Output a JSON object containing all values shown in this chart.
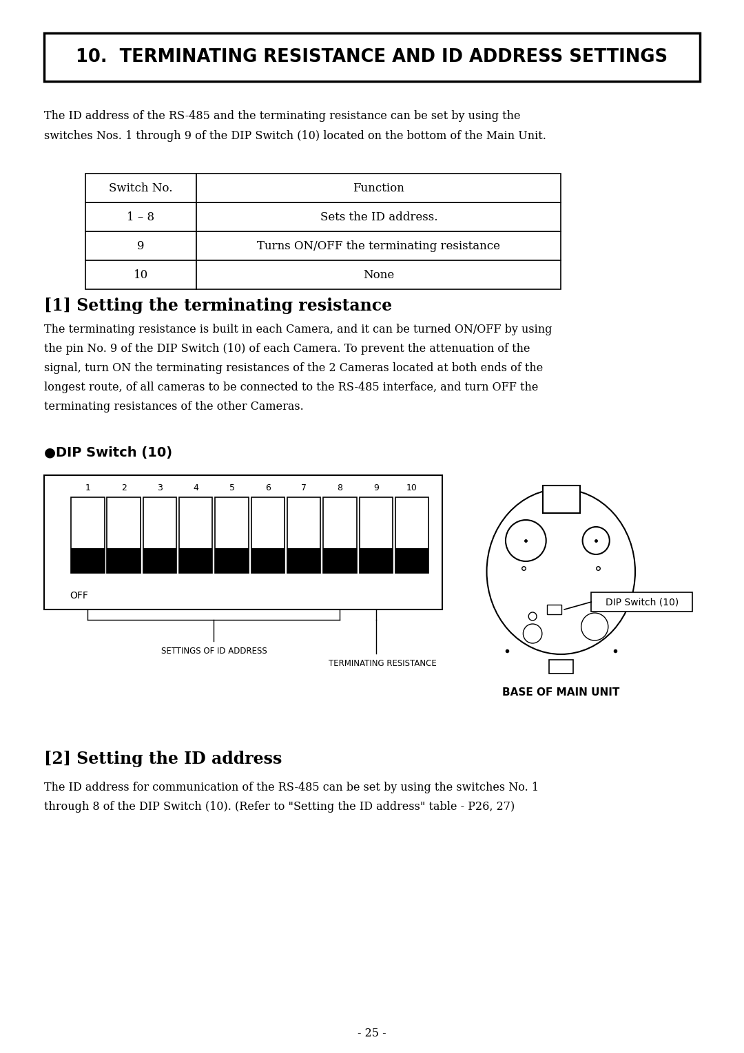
{
  "title": "10.  TERMINATING RESISTANCE AND ID ADDRESS SETTINGS",
  "intro_text": "The ID address of the RS-485 and the terminating resistance can be set by using the\nswitches Nos. 1 through 9 of the DIP Switch (10) located on the bottom of the Main Unit.",
  "table_headers": [
    "Switch No.",
    "Function"
  ],
  "table_rows": [
    [
      "1 – 8",
      "Sets the ID address."
    ],
    [
      "9",
      "Turns ON/OFF the terminating resistance"
    ],
    [
      "10",
      "None"
    ]
  ],
  "section1_title": "[1] Setting the terminating resistance",
  "section1_text": "The terminating resistance is built in each Camera, and it can be turned ON/OFF by using\nthe pin No. 9 of the DIP Switch (10) of each Camera. To prevent the attenuation of the\nsignal, turn ON the terminating resistances of the 2 Cameras located at both ends of the\nlongest route, of all cameras to be connected to the RS-485 interface, and turn OFF the\nterminating resistances of the other Cameras.",
  "dip_switch_title": "●DIP Switch (10)",
  "switch_numbers": [
    "1",
    "2",
    "3",
    "4",
    "5",
    "6",
    "7",
    "8",
    "9",
    "10"
  ],
  "off_label": "OFF",
  "settings_id_label": "SETTINGS OF ID ADDRESS",
  "terminating_label": "TERMINATING RESISTANCE",
  "dip_switch_box_label": "DIP Switch (10)",
  "base_label": "BASE OF MAIN UNIT",
  "section2_title": "[2] Setting the ID address",
  "section2_text": "The ID address for communication of the RS-485 can be set by using the switches No. 1\nthrough 8 of the DIP Switch (10). (Refer to \"Setting the ID address\" table - P26, 27)",
  "page_number": "- 25 -",
  "bg_color": "#ffffff",
  "text_color": "#000000"
}
